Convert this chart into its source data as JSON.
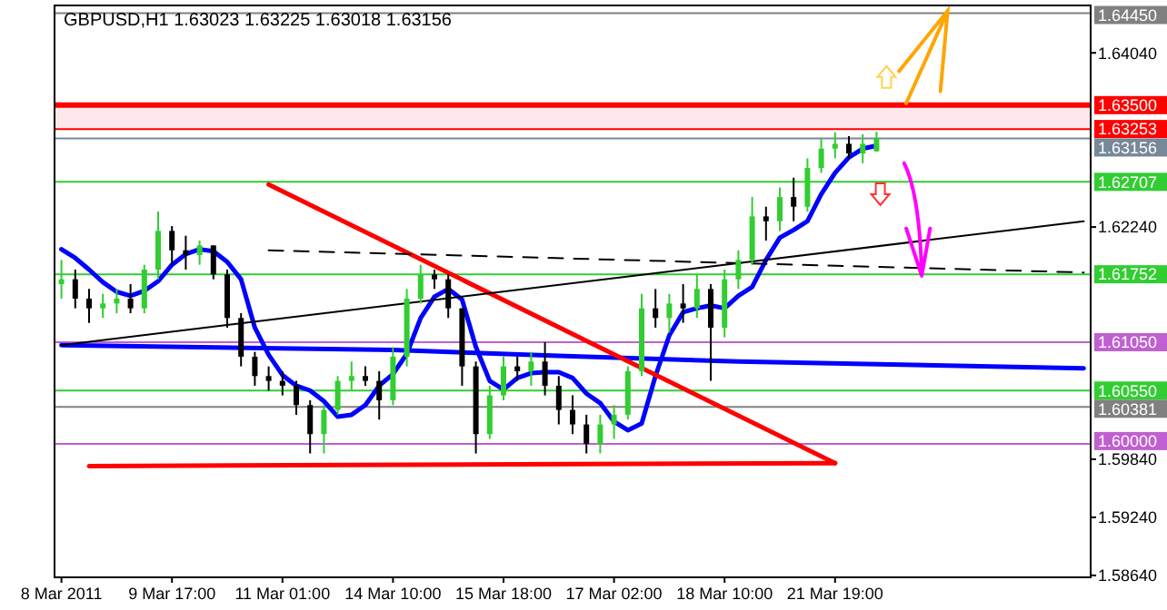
{
  "chart_data": {
    "type": "candlestick",
    "title": "GBPUSD,H1  1.63023 1.63225 1.63018 1.63156",
    "categories": [
      "8 Mar 2011",
      null,
      null,
      null,
      null,
      null,
      null,
      null,
      "9 Mar 17:00",
      null,
      null,
      null,
      null,
      null,
      null,
      null,
      "11 Mar 01:00",
      null,
      null,
      null,
      null,
      null,
      null,
      null,
      "14 Mar 10:00",
      null,
      null,
      null,
      null,
      null,
      null,
      null,
      "15 Mar 18:00",
      null,
      null,
      null,
      null,
      null,
      null,
      null,
      "17 Mar 02:00",
      null,
      null,
      null,
      null,
      null,
      null,
      null,
      "18 Mar 10:00",
      null,
      null,
      null,
      null,
      null,
      null,
      null,
      "21 Mar 19:00",
      null,
      null,
      null,
      null,
      null,
      null,
      null,
      null,
      null,
      null,
      null,
      null,
      null,
      null,
      null,
      null,
      null,
      null
    ],
    "ohlc": [
      [
        1.6165,
        1.619,
        1.615,
        1.617
      ],
      [
        1.617,
        1.618,
        1.614,
        1.615
      ],
      [
        1.615,
        1.616,
        1.6125,
        1.614
      ],
      [
        1.614,
        1.6155,
        1.613,
        1.6145
      ],
      [
        1.6145,
        1.616,
        1.6135,
        1.615
      ],
      [
        1.615,
        1.6165,
        1.6135,
        1.614
      ],
      [
        1.614,
        1.6185,
        1.6135,
        1.618
      ],
      [
        1.618,
        1.624,
        1.617,
        1.622
      ],
      [
        1.622,
        1.6225,
        1.6185,
        1.62
      ],
      [
        1.62,
        1.6215,
        1.618,
        1.6195
      ],
      [
        1.6195,
        1.621,
        1.6185,
        1.6205
      ],
      [
        1.6205,
        1.6205,
        1.617,
        1.6175
      ],
      [
        1.6175,
        1.618,
        1.612,
        1.613
      ],
      [
        1.613,
        1.6135,
        1.608,
        1.609
      ],
      [
        1.609,
        1.6095,
        1.606,
        1.607
      ],
      [
        1.607,
        1.608,
        1.6055,
        1.6065
      ],
      [
        1.6065,
        1.6075,
        1.605,
        1.606
      ],
      [
        1.606,
        1.6065,
        1.603,
        1.604
      ],
      [
        1.604,
        1.6045,
        1.599,
        1.601
      ],
      [
        1.601,
        1.604,
        1.599,
        1.6035
      ],
      [
        1.6035,
        1.607,
        1.603,
        1.6065
      ],
      [
        1.6065,
        1.6085,
        1.6055,
        1.607
      ],
      [
        1.607,
        1.608,
        1.606,
        1.6065
      ],
      [
        1.6065,
        1.6075,
        1.6025,
        1.6045
      ],
      [
        1.6045,
        1.61,
        1.604,
        1.609
      ],
      [
        1.609,
        1.616,
        1.608,
        1.615
      ],
      [
        1.615,
        1.6185,
        1.6145,
        1.6175
      ],
      [
        1.6175,
        1.618,
        1.616,
        1.617
      ],
      [
        1.617,
        1.6175,
        1.613,
        1.614
      ],
      [
        1.614,
        1.614,
        1.606,
        1.608
      ],
      [
        1.608,
        1.6085,
        1.599,
        1.601
      ],
      [
        1.601,
        1.606,
        1.6005,
        1.605
      ],
      [
        1.605,
        1.609,
        1.6045,
        1.608
      ],
      [
        1.608,
        1.609,
        1.6065,
        1.6075
      ],
      [
        1.6075,
        1.6095,
        1.606,
        1.6085
      ],
      [
        1.6085,
        1.6105,
        1.605,
        1.606
      ],
      [
        1.606,
        1.607,
        1.602,
        1.6035
      ],
      [
        1.6035,
        1.605,
        1.601,
        1.602
      ],
      [
        1.602,
        1.603,
        1.599,
        1.6
      ],
      [
        1.6,
        1.603,
        1.599,
        1.602
      ],
      [
        1.602,
        1.604,
        1.6005,
        1.603
      ],
      [
        1.603,
        1.608,
        1.6025,
        1.6075
      ],
      [
        1.6075,
        1.6155,
        1.607,
        1.614
      ],
      [
        1.614,
        1.616,
        1.612,
        1.613
      ],
      [
        1.613,
        1.6155,
        1.6115,
        1.6145
      ],
      [
        1.6145,
        1.6165,
        1.6125,
        1.614
      ],
      [
        1.614,
        1.6175,
        1.613,
        1.616
      ],
      [
        1.616,
        1.6165,
        1.6065,
        1.612
      ],
      [
        1.612,
        1.618,
        1.611,
        1.617
      ],
      [
        1.617,
        1.62,
        1.616,
        1.619
      ],
      [
        1.619,
        1.6255,
        1.6185,
        1.6235
      ],
      [
        1.6235,
        1.6245,
        1.621,
        1.623
      ],
      [
        1.623,
        1.6265,
        1.622,
        1.6255
      ],
      [
        1.6255,
        1.6275,
        1.623,
        1.6245
      ],
      [
        1.6245,
        1.6295,
        1.624,
        1.6285
      ],
      [
        1.6285,
        1.6315,
        1.628,
        1.6305
      ],
      [
        1.6305,
        1.6322,
        1.6295,
        1.631
      ],
      [
        1.631,
        1.6318,
        1.6295,
        1.63
      ],
      [
        1.63,
        1.632,
        1.629,
        1.631
      ],
      [
        1.63023,
        1.63225,
        1.63018,
        1.63156
      ],
      null,
      null,
      null,
      null,
      null,
      null,
      null,
      null,
      null,
      null,
      null,
      null,
      null,
      null,
      null
    ],
    "colors": [
      "#32cd32",
      "#000000",
      "#000000",
      "#32cd32",
      "#32cd32",
      "#000000",
      "#32cd32",
      "#32cd32",
      "#000000",
      "#000000",
      "#32cd32",
      "#000000",
      "#000000",
      "#000000",
      "#000000",
      "#000000",
      "#000000",
      "#000000",
      "#000000",
      "#32cd32",
      "#32cd32",
      "#32cd32",
      "#000000",
      "#000000",
      "#32cd32",
      "#32cd32",
      "#32cd32",
      "#000000",
      "#000000",
      "#000000",
      "#000000",
      "#32cd32",
      "#32cd32",
      "#000000",
      "#32cd32",
      "#000000",
      "#000000",
      "#000000",
      "#000000",
      "#32cd32",
      "#32cd32",
      "#32cd32",
      "#32cd32",
      "#000000",
      "#32cd32",
      "#000000",
      "#32cd32",
      "#000000",
      "#32cd32",
      "#32cd32",
      "#32cd32",
      "#000000",
      "#32cd32",
      "#000000",
      "#32cd32",
      "#32cd32",
      "#32cd32",
      "#000000",
      "#32cd32",
      "#32cd32",
      null,
      null,
      null,
      null,
      null,
      null,
      null,
      null,
      null,
      null,
      null,
      null,
      null,
      null,
      null
    ],
    "series": [
      {
        "type": "line",
        "color": "#0000ff",
        "values": [
          1.6201,
          1.6192,
          1.618,
          1.6167,
          1.6157,
          1.6153,
          1.6158,
          1.6168,
          1.6185,
          1.6196,
          1.6201,
          1.6199,
          1.6188,
          1.617,
          1.612,
          1.6092,
          1.6071,
          1.606,
          1.6055,
          1.6044,
          1.6028,
          1.603,
          1.604,
          1.606,
          1.6072,
          1.6093,
          1.613,
          1.6152,
          1.616,
          1.6149,
          1.61,
          1.6065,
          1.6056,
          1.6068,
          1.6073,
          1.6074,
          1.6074,
          1.6068,
          1.6052,
          1.6042,
          1.6023,
          1.6014,
          1.6021,
          1.607,
          1.6112,
          1.6136,
          1.614,
          1.6143,
          1.614,
          1.6153,
          1.6162,
          1.619,
          1.6213,
          1.6221,
          1.623,
          1.6258,
          1.628,
          1.6296,
          1.6305,
          1.6308,
          null,
          null,
          null,
          null,
          null,
          null,
          null,
          null,
          null,
          null,
          null,
          null,
          null,
          null,
          null
        ]
      },
      {
        "type": "line",
        "color": "#0000ff",
        "values": [
          1.6102,
          null,
          null,
          null,
          null,
          null,
          null,
          null,
          null,
          null,
          null,
          null,
          null,
          null,
          null,
          null,
          null,
          null,
          null,
          null,
          null,
          null,
          null,
          null,
          1.6097,
          null,
          null,
          null,
          null,
          null,
          null,
          null,
          null,
          null,
          null,
          null,
          1.6091,
          null,
          null,
          null,
          null,
          null,
          null,
          null,
          null,
          null,
          null,
          null,
          null,
          1.6085,
          null,
          null,
          null,
          null,
          null,
          null,
          null,
          null,
          null,
          null,
          null,
          null,
          null,
          null,
          null,
          null,
          null,
          null,
          null,
          null,
          null,
          null,
          null,
          null,
          1.6078
        ]
      },
      {
        "type": "line",
        "color": "#ff0000",
        "values": [
          null,
          null,
          null,
          null,
          null,
          null,
          null,
          null,
          null,
          null,
          null,
          null,
          null,
          null,
          null,
          1.6268,
          null,
          null,
          null,
          null,
          null,
          null,
          null,
          null,
          null,
          null,
          null,
          null,
          null,
          null,
          null,
          null,
          null,
          null,
          null,
          null,
          null,
          null,
          null,
          null,
          null,
          null,
          null,
          null,
          null,
          null,
          null,
          null,
          null,
          null,
          null,
          null,
          null,
          null,
          null,
          null,
          1.598,
          null,
          null,
          null,
          null,
          null,
          null,
          null,
          null,
          null,
          null,
          null,
          null,
          null,
          null,
          null,
          null,
          null,
          null
        ]
      },
      {
        "type": "line",
        "color": "#ff0000",
        "values": [
          null,
          null,
          1.5977,
          null,
          null,
          null,
          null,
          null,
          null,
          null,
          null,
          null,
          null,
          null,
          null,
          null,
          null,
          null,
          null,
          null,
          null,
          null,
          null,
          null,
          null,
          null,
          null,
          null,
          null,
          null,
          null,
          null,
          null,
          null,
          null,
          null,
          null,
          null,
          null,
          null,
          null,
          null,
          null,
          null,
          null,
          null,
          null,
          null,
          null,
          null,
          null,
          null,
          null,
          null,
          null,
          null,
          1.598,
          null,
          null,
          null,
          null,
          null,
          null,
          null,
          null,
          null,
          null,
          null,
          null,
          null,
          null,
          null,
          null,
          null,
          null
        ]
      },
      {
        "type": "line",
        "color": "#000000",
        "values": [
          1.6102,
          null,
          null,
          null,
          null,
          null,
          null,
          null,
          null,
          null,
          null,
          null,
          null,
          null,
          null,
          null,
          null,
          null,
          null,
          null,
          null,
          null,
          null,
          null,
          null,
          null,
          null,
          null,
          null,
          null,
          null,
          null,
          null,
          null,
          null,
          null,
          null,
          null,
          null,
          null,
          null,
          null,
          null,
          null,
          null,
          null,
          null,
          null,
          null,
          null,
          null,
          null,
          null,
          null,
          null,
          null,
          null,
          null,
          null,
          null,
          null,
          null,
          null,
          null,
          null,
          null,
          null,
          null,
          null,
          null,
          null,
          null,
          null,
          null,
          1.623
        ]
      },
      {
        "type": "line",
        "color": "#000000",
        "line_style": "dashed",
        "values": [
          null,
          null,
          null,
          null,
          null,
          null,
          null,
          null,
          null,
          null,
          null,
          null,
          null,
          null,
          null,
          1.62,
          null,
          null,
          null,
          null,
          null,
          null,
          null,
          null,
          null,
          null,
          null,
          null,
          null,
          null,
          null,
          null,
          null,
          null,
          null,
          null,
          null,
          null,
          null,
          null,
          null,
          null,
          null,
          null,
          null,
          null,
          null,
          null,
          null,
          null,
          null,
          null,
          null,
          null,
          null,
          null,
          null,
          null,
          null,
          null,
          null,
          null,
          null,
          null,
          null,
          null,
          null,
          null,
          null,
          null,
          null,
          null,
          null,
          null,
          1.6177
        ]
      }
    ],
    "ylim": [
      1.5862,
      1.6453
    ],
    "yticks": [
      {
        "value": 1.6404,
        "label": "1.64040"
      },
      {
        "value": 1.6224,
        "label": "1.62240"
      },
      {
        "value": 1.5984,
        "label": "1.59840"
      },
      {
        "value": 1.5924,
        "label": "1.59240"
      },
      {
        "value": 1.5864,
        "label": "1.58640"
      }
    ],
    "bands": [
      {
        "axis": "y",
        "from": 1.63253,
        "to": 1.635,
        "color": "#ffe8ec"
      }
    ],
    "ref_lines": [
      {
        "axis": "y",
        "value": 1.6445,
        "label": "1.64450",
        "color": "#808080"
      },
      {
        "axis": "y",
        "value": 1.635,
        "label": "1.63500",
        "color": "#ff0000"
      },
      {
        "axis": "y",
        "value": 1.63253,
        "label": "1.63253",
        "color": "#ff0000"
      },
      {
        "axis": "y",
        "value": 1.63156,
        "label": "1.63156",
        "color": "#778899"
      },
      {
        "axis": "y",
        "value": 1.62707,
        "label": "1.62707",
        "color": "#32cd32"
      },
      {
        "axis": "y",
        "value": 1.61752,
        "label": "1.61752",
        "color": "#32cd32"
      },
      {
        "axis": "y",
        "value": 1.6105,
        "label": "1.61050",
        "color": "#c060d0"
      },
      {
        "axis": "y",
        "value": 1.6055,
        "label": "1.60550",
        "color": "#32cd32"
      },
      {
        "axis": "y",
        "value": 1.60381,
        "label": "1.60381",
        "color": "#808080"
      },
      {
        "axis": "y",
        "value": 1.6,
        "label": "1.60000",
        "color": "#c060d0"
      }
    ]
  }
}
